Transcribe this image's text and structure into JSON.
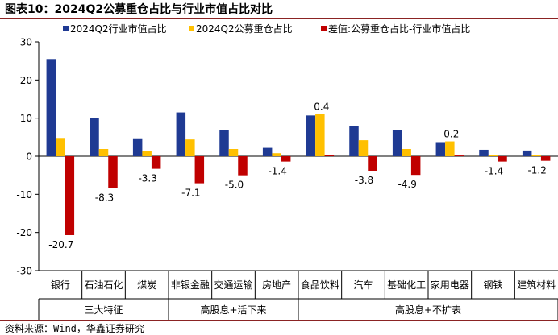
{
  "title": "图表10：2024Q2公募重仓占比与行业市值占比对比",
  "source": "资料来源：Wind，华鑫证券研究",
  "colors": {
    "industry": "#1F3A93",
    "fund": "#FFC000",
    "diff": "#C00000",
    "title_rule": "#8B2323"
  },
  "chart_data": {
    "type": "bar",
    "title": "图表10：2024Q2公募重仓占比与行业市值占比对比",
    "xlabel": "",
    "ylabel": "",
    "ylim": [
      -30,
      30
    ],
    "yticks": [
      -30,
      -20,
      -10,
      0,
      10,
      20,
      30
    ],
    "legend_position": "top",
    "categories": [
      "银行",
      "石油石化",
      "煤炭",
      "非银金融",
      "交通运输",
      "房地产",
      "食品饮料",
      "汽车",
      "基础化工",
      "家用电器",
      "钢铁",
      "建筑材料"
    ],
    "groups": [
      {
        "label": "三大特征",
        "count": 3
      },
      {
        "label": "高股息+活下来",
        "count": 3
      },
      {
        "label": "高股息+不扩表",
        "count": 6
      }
    ],
    "series": [
      {
        "name": "2024Q2行业市值占比",
        "values": [
          25.5,
          10.1,
          4.7,
          11.5,
          6.9,
          2.2,
          10.7,
          8.0,
          6.8,
          3.7,
          1.7,
          1.5
        ]
      },
      {
        "name": "2024Q2公募重仓占比",
        "values": [
          4.8,
          1.9,
          1.4,
          4.4,
          1.9,
          0.8,
          11.1,
          4.2,
          1.9,
          3.9,
          0.3,
          0.3
        ]
      },
      {
        "name": "差值:公募重仓占比-行业市值占比",
        "values": [
          -20.7,
          -8.3,
          -3.3,
          -7.1,
          -5.0,
          -1.4,
          0.4,
          -3.8,
          -4.9,
          0.2,
          -1.4,
          -1.2
        ]
      }
    ],
    "data_labels": [
      "-20.7",
      "-8.3",
      "-3.3",
      "-7.1",
      "-5.0",
      "-1.4",
      "0.4",
      "-3.8",
      "-4.9",
      "0.2",
      "-1.4",
      "-1.2"
    ]
  }
}
